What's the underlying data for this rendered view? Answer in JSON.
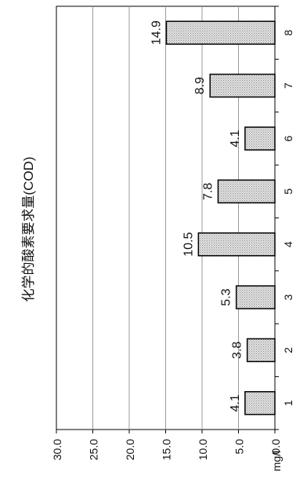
{
  "chart_data": {
    "type": "bar",
    "orientation": "rotated-90-clockwise",
    "title": "化学的酸素要求量(COD)",
    "unit_label": "mg/l",
    "categories": [
      "1",
      "2",
      "3",
      "4",
      "5",
      "6",
      "7",
      "8"
    ],
    "values": [
      4.1,
      3.8,
      5.3,
      10.5,
      7.8,
      4.1,
      8.9,
      14.9
    ],
    "value_labels": [
      "4.1",
      "3.8",
      "5.3",
      "10.5",
      "7.8",
      "4.1",
      "8.9",
      "14.9"
    ],
    "y_ticks": [
      "0.0",
      "5.0",
      "10.0",
      "15.0",
      "20.0",
      "25.0",
      "30.0"
    ],
    "ylim": [
      0,
      30
    ],
    "grid": true,
    "colors": {
      "bar_fill": "#d6d6d6",
      "bar_stroke": "#000000",
      "grid": "#9a9a9a",
      "axis": "#000000"
    }
  }
}
